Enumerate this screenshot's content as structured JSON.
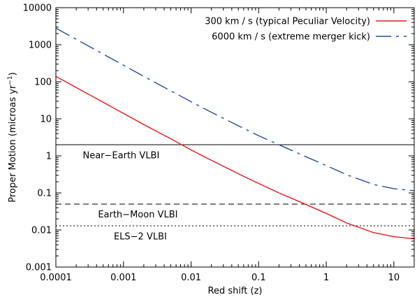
{
  "chart_data": {
    "type": "line",
    "xlabel": "Red shift (z)",
    "ylabel": "Proper Motion (microas yr",
    "ylabel_sup": "−1",
    "ylabel_close": ")",
    "xscale": "log",
    "yscale": "log",
    "xlim": [
      0.0001,
      20
    ],
    "ylim": [
      0.001,
      10000
    ],
    "grid": false,
    "legend_position": "top-right",
    "x_ticks": [
      {
        "value": 0.0001,
        "label": "0.0001"
      },
      {
        "value": 0.001,
        "label": "0.001"
      },
      {
        "value": 0.01,
        "label": "0.01"
      },
      {
        "value": 0.1,
        "label": "0.1"
      },
      {
        "value": 1,
        "label": "1"
      },
      {
        "value": 10,
        "label": "10"
      }
    ],
    "y_ticks": [
      {
        "value": 0.001,
        "label": "0.001"
      },
      {
        "value": 0.01,
        "label": "0.01"
      },
      {
        "value": 0.1,
        "label": "0.1"
      },
      {
        "value": 1,
        "label": "1"
      },
      {
        "value": 10,
        "label": "10"
      },
      {
        "value": 100,
        "label": "100"
      },
      {
        "value": 1000,
        "label": "1000"
      },
      {
        "value": 10000,
        "label": "10000"
      }
    ],
    "series": [
      {
        "name": "300 km / s (typical Peculiar Velocity)",
        "color": "#e41a1c",
        "style": "solid",
        "x": [
          0.0001,
          0.0002,
          0.0005,
          0.001,
          0.002,
          0.005,
          0.01,
          0.02,
          0.05,
          0.1,
          0.2,
          0.5,
          1,
          2,
          5,
          10,
          20
        ],
        "y": [
          140,
          70,
          28,
          14,
          7,
          2.9,
          1.45,
          0.76,
          0.33,
          0.18,
          0.1,
          0.049,
          0.028,
          0.0155,
          0.0085,
          0.0066,
          0.0058
        ]
      },
      {
        "name": "6000 km / s (extreme merger kick)",
        "color": "#1f4e9c",
        "style": "dash-dot",
        "x": [
          0.0001,
          0.0002,
          0.0005,
          0.001,
          0.002,
          0.005,
          0.01,
          0.02,
          0.05,
          0.1,
          0.2,
          0.5,
          1,
          2,
          5,
          10,
          20
        ],
        "y": [
          2800,
          1400,
          560,
          280,
          140,
          57,
          29,
          15,
          6.5,
          3.5,
          2,
          0.95,
          0.55,
          0.31,
          0.17,
          0.13,
          0.115
        ]
      }
    ],
    "hlines": [
      {
        "y": 2,
        "style": "solid",
        "label": "Near−Earth VLBI",
        "label_x": 0.00025,
        "label_y": 1.05
      },
      {
        "y": 0.05,
        "style": "dashed",
        "label": "Earth−Moon VLBI",
        "label_x": 0.00042,
        "label_y": 0.0265
      },
      {
        "y": 0.013,
        "style": "dotted",
        "label": "ELS−2 VLBI",
        "label_x": 0.00072,
        "label_y": 0.0068
      }
    ]
  }
}
